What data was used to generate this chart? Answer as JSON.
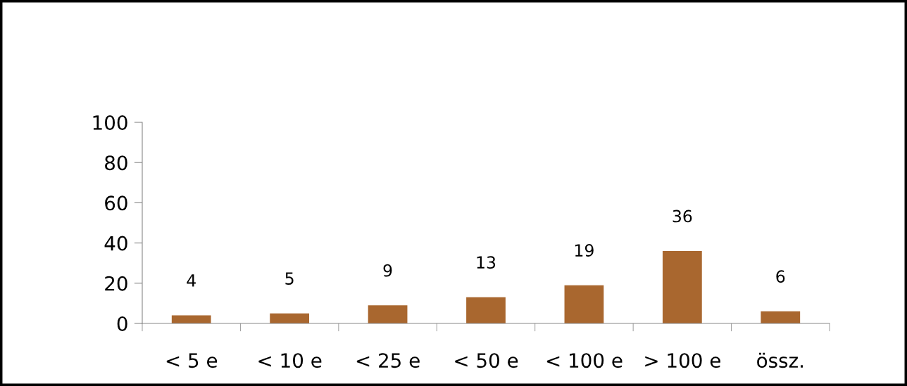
{
  "chart_data": {
    "type": "bar",
    "categories": [
      "< 5 e",
      "< 10 e",
      "< 25 e",
      "< 50 e",
      "< 100 e",
      "> 100 e",
      "össz."
    ],
    "values": [
      4,
      5,
      9,
      13,
      19,
      36,
      6
    ],
    "color": "#a9672f",
    "ylim": [
      0,
      100
    ],
    "yticks": [
      0,
      20,
      40,
      60,
      80,
      100
    ],
    "data_labels": true,
    "grid": false,
    "legend": false
  }
}
